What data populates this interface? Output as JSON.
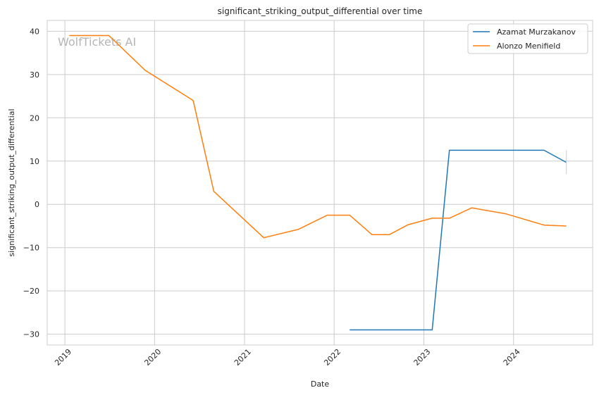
{
  "chart_data": {
    "type": "line",
    "title": "significant_striking_output_differential over time",
    "xlabel": "Date",
    "ylabel": "significant_striking_output_differential",
    "watermark": "WolfTickets AI",
    "x_ticks": [
      "2019",
      "2020",
      "2021",
      "2022",
      "2023",
      "2024"
    ],
    "y_ticks": [
      "40",
      "30",
      "20",
      "10",
      "0",
      "−10",
      "−20",
      "−30"
    ],
    "y_tick_values": [
      40,
      30,
      20,
      10,
      0,
      -10,
      -20,
      -30
    ],
    "xlim": [
      "2018-10-21",
      "2024-11-18"
    ],
    "ylim": [
      -32.5,
      42.5
    ],
    "grid": true,
    "legend_position": "top-right",
    "series": [
      {
        "name": "Azamat Murzakanov",
        "color": "#1f77b4",
        "x": [
          "2022-03-05",
          "2023-02-04",
          "2023-04-15",
          "2024-05-04",
          "2024-08-03"
        ],
        "y": [
          -29,
          -29,
          12.5,
          12.5,
          9.7
        ]
      },
      {
        "name": "Alonzo Menifield",
        "color": "#ff7f0e",
        "x": [
          "2019-01-19",
          "2019-06-29",
          "2019-11-23",
          "2020-06-06",
          "2020-08-29",
          "2021-03-20",
          "2021-08-07",
          "2021-12-04",
          "2022-03-05",
          "2022-06-04",
          "2022-08-13",
          "2022-10-29",
          "2023-02-04",
          "2023-04-15",
          "2023-07-15",
          "2023-12-02",
          "2024-05-04",
          "2024-08-03"
        ],
        "y": [
          39,
          39,
          31,
          24,
          3,
          -7.7,
          -5.8,
          -2.5,
          -2.5,
          -7,
          -7,
          -4.7,
          -3.2,
          -3.2,
          -0.8,
          -2.2,
          -4.8,
          -5
        ]
      }
    ]
  }
}
